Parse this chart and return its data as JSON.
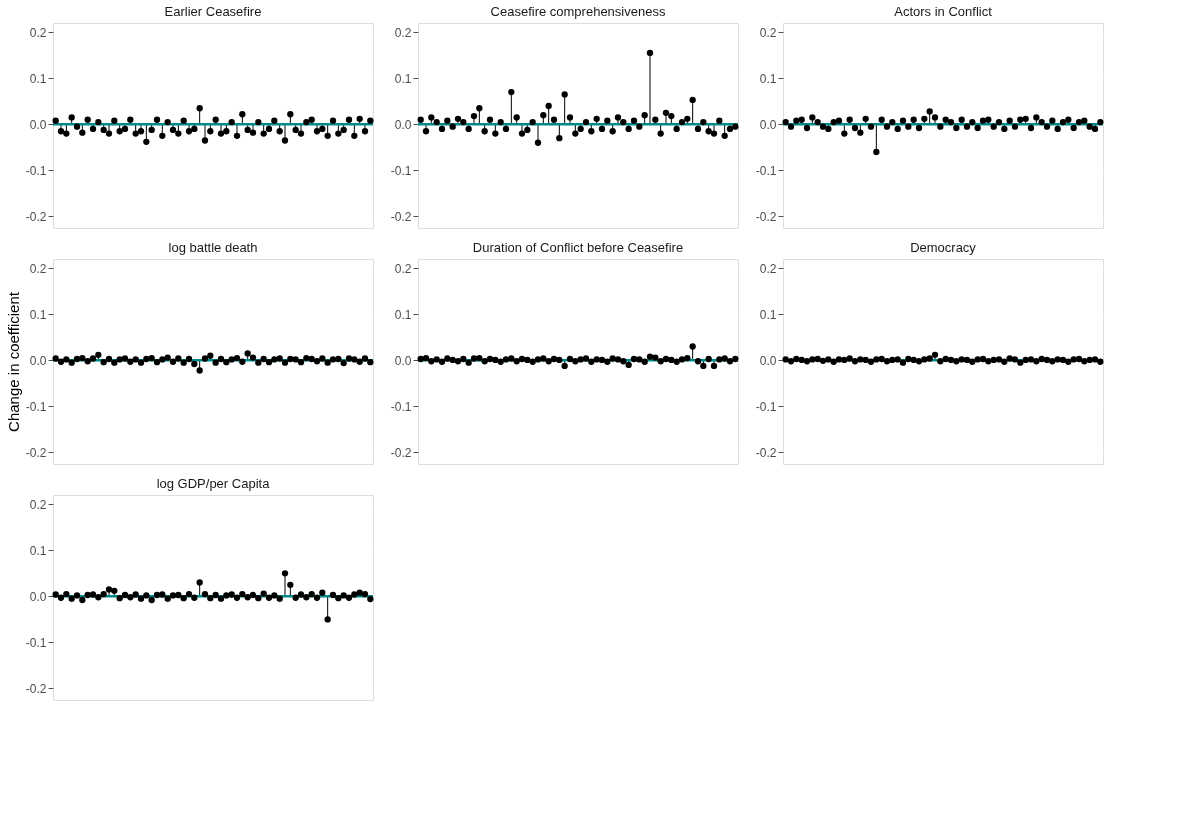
{
  "chart_data": [
    {
      "type": "lollipop",
      "title": "Earlier Ceasefire",
      "color": "#000000",
      "marker": "circle",
      "grid": "y",
      "tick_labels": "y",
      "ylim": [
        -0.225,
        0.22
      ],
      "yticks": [
        {
          "value": -0.2,
          "label": "-0.2"
        },
        {
          "value": -0.1,
          "label": "-0.1"
        },
        {
          "value": 0,
          "label": "0.0"
        },
        {
          "value": 0.1,
          "label": "0.1"
        },
        {
          "value": 0.2,
          "label": "0.2"
        }
      ],
      "ref_lines": [
        {
          "axis": "y",
          "value": 0,
          "color": "#008b8b"
        }
      ],
      "categories": [
        null,
        null,
        null,
        null,
        null,
        null,
        null,
        null,
        null,
        null,
        null,
        null,
        null,
        null,
        null,
        null,
        null,
        null,
        null,
        null,
        null,
        null,
        null,
        null,
        null,
        null,
        null,
        null,
        null,
        null,
        null,
        null,
        null,
        null,
        null,
        null,
        null,
        null,
        null,
        null,
        null,
        null,
        null,
        null,
        null,
        null,
        null,
        null,
        null,
        null,
        null,
        null,
        null,
        null,
        null,
        null,
        null,
        null,
        null,
        null
      ],
      "values": [
        0.008,
        -0.015,
        -0.02,
        0.015,
        -0.005,
        -0.018,
        0.01,
        -0.01,
        0.005,
        -0.012,
        -0.02,
        0.008,
        -0.015,
        -0.01,
        0.01,
        -0.02,
        -0.015,
        -0.038,
        -0.012,
        0.01,
        -0.025,
        0.005,
        -0.012,
        -0.02,
        0.008,
        -0.015,
        -0.01,
        0.035,
        -0.035,
        -0.015,
        0.01,
        -0.02,
        -0.015,
        0.005,
        -0.025,
        0.022,
        -0.012,
        -0.018,
        0.005,
        -0.02,
        -0.01,
        0.008,
        -0.015,
        -0.035,
        0.022,
        -0.012,
        -0.02,
        0.005,
        0.01,
        -0.015,
        -0.01,
        -0.025,
        0.008,
        -0.02,
        -0.012,
        0.01,
        -0.025,
        0.012,
        -0.015,
        0.008
      ]
    },
    {
      "type": "lollipop",
      "title": "Ceasefire comprehensiveness",
      "color": "#000000",
      "marker": "circle",
      "grid": "y",
      "ylim": [
        -0.225,
        0.22
      ],
      "yticks": [
        {
          "value": -0.2,
          "label": "-0.2"
        },
        {
          "value": -0.1,
          "label": "-0.1"
        },
        {
          "value": 0,
          "label": "0.0"
        },
        {
          "value": 0.1,
          "label": "0.1"
        },
        {
          "value": 0.2,
          "label": "0.2"
        }
      ],
      "ref_lines": [
        {
          "axis": "y",
          "value": 0,
          "color": "#008b8b"
        }
      ],
      "categories": [
        null,
        null,
        null,
        null,
        null,
        null,
        null,
        null,
        null,
        null,
        null,
        null,
        null,
        null,
        null,
        null,
        null,
        null,
        null,
        null,
        null,
        null,
        null,
        null,
        null,
        null,
        null,
        null,
        null,
        null,
        null,
        null,
        null,
        null,
        null,
        null,
        null,
        null,
        null,
        null,
        null,
        null,
        null,
        null,
        null,
        null,
        null,
        null,
        null,
        null,
        null,
        null,
        null,
        null,
        null,
        null,
        null,
        null,
        null,
        null
      ],
      "values": [
        0.01,
        -0.015,
        0.015,
        0.005,
        -0.01,
        0.008,
        -0.005,
        0.012,
        0.005,
        -0.01,
        0.018,
        0.035,
        -0.015,
        0.01,
        -0.02,
        0.005,
        -0.01,
        0.07,
        0.015,
        -0.02,
        -0.012,
        0.005,
        -0.04,
        0.02,
        0.04,
        0.01,
        -0.03,
        0.065,
        0.015,
        -0.02,
        -0.01,
        0.005,
        -0.015,
        0.012,
        -0.01,
        0.008,
        -0.015,
        0.015,
        0.005,
        -0.01,
        0.008,
        -0.005,
        0.02,
        0.155,
        0.01,
        -0.02,
        0.025,
        0.018,
        -0.01,
        0.005,
        0.012,
        0.053,
        -0.01,
        0.005,
        -0.015,
        -0.02,
        0.008,
        -0.025,
        -0.01,
        -0.005
      ]
    },
    {
      "type": "lollipop",
      "title": "Actors in Conflict",
      "color": "#000000",
      "marker": "circle",
      "grid": "y",
      "ylim": [
        -0.225,
        0.22
      ],
      "yticks": [
        {
          "value": -0.2,
          "label": "-0.2"
        },
        {
          "value": -0.1,
          "label": "-0.1"
        },
        {
          "value": 0,
          "label": "0.0"
        },
        {
          "value": 0.1,
          "label": "0.1"
        },
        {
          "value": 0.2,
          "label": "0.2"
        }
      ],
      "ref_lines": [
        {
          "axis": "y",
          "value": 0,
          "color": "#008b8b"
        }
      ],
      "categories": [
        null,
        null,
        null,
        null,
        null,
        null,
        null,
        null,
        null,
        null,
        null,
        null,
        null,
        null,
        null,
        null,
        null,
        null,
        null,
        null,
        null,
        null,
        null,
        null,
        null,
        null,
        null,
        null,
        null,
        null,
        null,
        null,
        null,
        null,
        null,
        null,
        null,
        null,
        null,
        null,
        null,
        null,
        null,
        null,
        null,
        null,
        null,
        null,
        null,
        null,
        null,
        null,
        null,
        null,
        null,
        null,
        null,
        null,
        null,
        null
      ],
      "values": [
        0.005,
        -0.005,
        0.008,
        0.01,
        -0.008,
        0.015,
        0.005,
        -0.005,
        -0.01,
        0.005,
        0.008,
        -0.02,
        0.01,
        -0.008,
        -0.018,
        0.012,
        -0.005,
        -0.06,
        0.01,
        -0.005,
        0.005,
        -0.01,
        0.008,
        -0.005,
        0.01,
        -0.008,
        0.012,
        0.028,
        0.015,
        -0.005,
        0.01,
        0.005,
        -0.008,
        0.01,
        -0.005,
        0.005,
        -0.008,
        0.008,
        0.01,
        -0.005,
        0.005,
        -0.01,
        0.008,
        -0.005,
        0.01,
        0.012,
        -0.008,
        0.015,
        0.005,
        -0.005,
        0.008,
        -0.01,
        0.005,
        0.01,
        -0.008,
        0.005,
        0.008,
        -0.005,
        -0.01,
        0.005
      ]
    },
    {
      "type": "lollipop",
      "title": "log battle death",
      "ylabel": "Change in coefficient",
      "color": "#000000",
      "marker": "circle",
      "grid": "y",
      "tick_labels": "y",
      "ylim": [
        -0.225,
        0.22
      ],
      "yticks": [
        {
          "value": -0.2,
          "label": "-0.2"
        },
        {
          "value": -0.1,
          "label": "-0.1"
        },
        {
          "value": 0,
          "label": "0.0"
        },
        {
          "value": 0.1,
          "label": "0.1"
        },
        {
          "value": 0.2,
          "label": "0.2"
        }
      ],
      "ref_lines": [
        {
          "axis": "y",
          "value": 0,
          "color": "#008b8b"
        }
      ],
      "categories": [
        null,
        null,
        null,
        null,
        null,
        null,
        null,
        null,
        null,
        null,
        null,
        null,
        null,
        null,
        null,
        null,
        null,
        null,
        null,
        null,
        null,
        null,
        null,
        null,
        null,
        null,
        null,
        null,
        null,
        null,
        null,
        null,
        null,
        null,
        null,
        null,
        null,
        null,
        null,
        null,
        null,
        null,
        null,
        null,
        null,
        null,
        null,
        null,
        null,
        null,
        null,
        null,
        null,
        null,
        null,
        null,
        null,
        null,
        null,
        null
      ],
      "values": [
        0.004,
        -0.003,
        0.002,
        -0.005,
        0.003,
        0.005,
        -0.002,
        0.004,
        0.012,
        -0.004,
        0.003,
        -0.005,
        0.002,
        0.004,
        -0.003,
        0.002,
        -0.005,
        0.003,
        0.005,
        -0.004,
        0.002,
        0.006,
        -0.003,
        0.004,
        -0.005,
        0.003,
        -0.008,
        -0.022,
        0.004,
        0.01,
        -0.005,
        0.003,
        -0.004,
        0.002,
        0.005,
        -0.003,
        0.015,
        0.006,
        -0.005,
        0.003,
        -0.004,
        0.002,
        0.004,
        -0.005,
        0.003,
        0.002,
        -0.004,
        0.005,
        0.003,
        -0.002,
        0.004,
        -0.005,
        0.002,
        0.003,
        -0.006,
        0.004,
        0.002,
        -0.003,
        0.004,
        -0.004
      ]
    },
    {
      "type": "lollipop",
      "title": "Duration of Conflict before Ceasefire",
      "color": "#000000",
      "marker": "circle",
      "grid": "y",
      "ylim": [
        -0.225,
        0.22
      ],
      "yticks": [
        {
          "value": -0.2,
          "label": "-0.2"
        },
        {
          "value": -0.1,
          "label": "-0.1"
        },
        {
          "value": 0,
          "label": "0.0"
        },
        {
          "value": 0.1,
          "label": "0.1"
        },
        {
          "value": 0.2,
          "label": "0.2"
        }
      ],
      "ref_lines": [
        {
          "axis": "y",
          "value": 0,
          "color": "#008b8b"
        }
      ],
      "categories": [
        null,
        null,
        null,
        null,
        null,
        null,
        null,
        null,
        null,
        null,
        null,
        null,
        null,
        null,
        null,
        null,
        null,
        null,
        null,
        null,
        null,
        null,
        null,
        null,
        null,
        null,
        null,
        null,
        null,
        null,
        null,
        null,
        null,
        null,
        null,
        null,
        null,
        null,
        null,
        null,
        null,
        null,
        null,
        null,
        null,
        null,
        null,
        null,
        null,
        null,
        null,
        null,
        null,
        null,
        null,
        null,
        null,
        null,
        null,
        null
      ],
      "values": [
        0.003,
        0.005,
        -0.002,
        0.002,
        -0.003,
        0.004,
        0.001,
        -0.002,
        0.003,
        -0.005,
        0.004,
        0.005,
        -0.002,
        0.003,
        0.001,
        -0.003,
        0.002,
        0.004,
        -0.002,
        0.003,
        0.001,
        -0.003,
        0.002,
        0.004,
        -0.002,
        0.003,
        0.001,
        -0.012,
        0.003,
        -0.002,
        0.002,
        0.004,
        -0.003,
        0.002,
        0.001,
        -0.003,
        0.004,
        0.002,
        -0.002,
        -0.01,
        0.003,
        0.002,
        -0.003,
        0.008,
        0.006,
        -0.002,
        0.003,
        0.001,
        -0.003,
        0.002,
        0.005,
        0.03,
        -0.002,
        -0.012,
        0.003,
        -0.012,
        0.002,
        0.004,
        -0.002,
        0.003
      ]
    },
    {
      "type": "lollipop",
      "title": "Democracy",
      "color": "#000000",
      "marker": "circle",
      "grid": "y",
      "ylim": [
        -0.225,
        0.22
      ],
      "yticks": [
        {
          "value": -0.2,
          "label": "-0.2"
        },
        {
          "value": -0.1,
          "label": "-0.1"
        },
        {
          "value": 0,
          "label": "0.0"
        },
        {
          "value": 0.1,
          "label": "0.1"
        },
        {
          "value": 0.2,
          "label": "0.2"
        }
      ],
      "ref_lines": [
        {
          "axis": "y",
          "value": 0,
          "color": "#008b8b"
        }
      ],
      "categories": [
        null,
        null,
        null,
        null,
        null,
        null,
        null,
        null,
        null,
        null,
        null,
        null,
        null,
        null,
        null,
        null,
        null,
        null,
        null,
        null,
        null,
        null,
        null,
        null,
        null,
        null,
        null,
        null,
        null,
        null,
        null,
        null,
        null,
        null,
        null,
        null,
        null,
        null,
        null,
        null,
        null,
        null,
        null,
        null,
        null,
        null,
        null,
        null,
        null,
        null,
        null,
        null,
        null,
        null,
        null,
        null,
        null,
        null,
        null,
        null
      ],
      "values": [
        0.002,
        -0.002,
        0.003,
        0.001,
        -0.002,
        0.002,
        0.003,
        -0.001,
        0.002,
        -0.003,
        0.002,
        0.001,
        0.004,
        -0.002,
        0.002,
        0.001,
        -0.003,
        0.002,
        0.003,
        -0.002,
        0.001,
        0.002,
        -0.005,
        0.003,
        0.001,
        -0.002,
        0.002,
        0.004,
        0.012,
        -0.002,
        0.003,
        0.001,
        -0.002,
        0.002,
        0.001,
        -0.003,
        0.002,
        0.003,
        -0.002,
        0.001,
        0.002,
        -0.003,
        0.004,
        0.002,
        -0.005,
        0.001,
        0.002,
        -0.002,
        0.003,
        0.001,
        -0.002,
        0.002,
        0.001,
        -0.003,
        0.002,
        0.003,
        -0.002,
        0.001,
        0.002,
        -0.003
      ]
    },
    {
      "type": "lollipop",
      "title": "log GDP/per Capita",
      "color": "#000000",
      "marker": "circle",
      "grid": "y",
      "tick_labels": "y",
      "ylim": [
        -0.225,
        0.22
      ],
      "yticks": [
        {
          "value": -0.2,
          "label": "-0.2"
        },
        {
          "value": -0.1,
          "label": "-0.1"
        },
        {
          "value": 0,
          "label": "0.0"
        },
        {
          "value": 0.1,
          "label": "0.1"
        },
        {
          "value": 0.2,
          "label": "0.2"
        }
      ],
      "ref_lines": [
        {
          "axis": "y",
          "value": 0,
          "color": "#008b8b"
        }
      ],
      "categories": [
        null,
        null,
        null,
        null,
        null,
        null,
        null,
        null,
        null,
        null,
        null,
        null,
        null,
        null,
        null,
        null,
        null,
        null,
        null,
        null,
        null,
        null,
        null,
        null,
        null,
        null,
        null,
        null,
        null,
        null,
        null,
        null,
        null,
        null,
        null,
        null,
        null,
        null,
        null,
        null,
        null,
        null,
        null,
        null,
        null,
        null,
        null,
        null,
        null,
        null,
        null,
        null,
        null,
        null,
        null,
        null,
        null,
        null,
        null,
        null
      ],
      "values": [
        0.004,
        -0.003,
        0.005,
        -0.005,
        0.002,
        -0.008,
        0.003,
        0.004,
        -0.002,
        0.005,
        0.015,
        0.012,
        -0.004,
        0.003,
        -0.002,
        0.004,
        -0.005,
        0.002,
        -0.008,
        0.003,
        0.004,
        -0.005,
        0.002,
        0.003,
        -0.004,
        0.005,
        -0.003,
        0.03,
        0.005,
        -0.004,
        0.003,
        -0.005,
        0.002,
        0.004,
        -0.003,
        0.005,
        -0.002,
        0.003,
        -0.004,
        0.006,
        -0.003,
        0.002,
        -0.005,
        0.05,
        0.025,
        -0.003,
        0.004,
        -0.002,
        0.005,
        -0.003,
        0.008,
        -0.05,
        0.003,
        -0.004,
        0.002,
        -0.003,
        0.004,
        0.008,
        0.005,
        -0.006
      ]
    }
  ]
}
